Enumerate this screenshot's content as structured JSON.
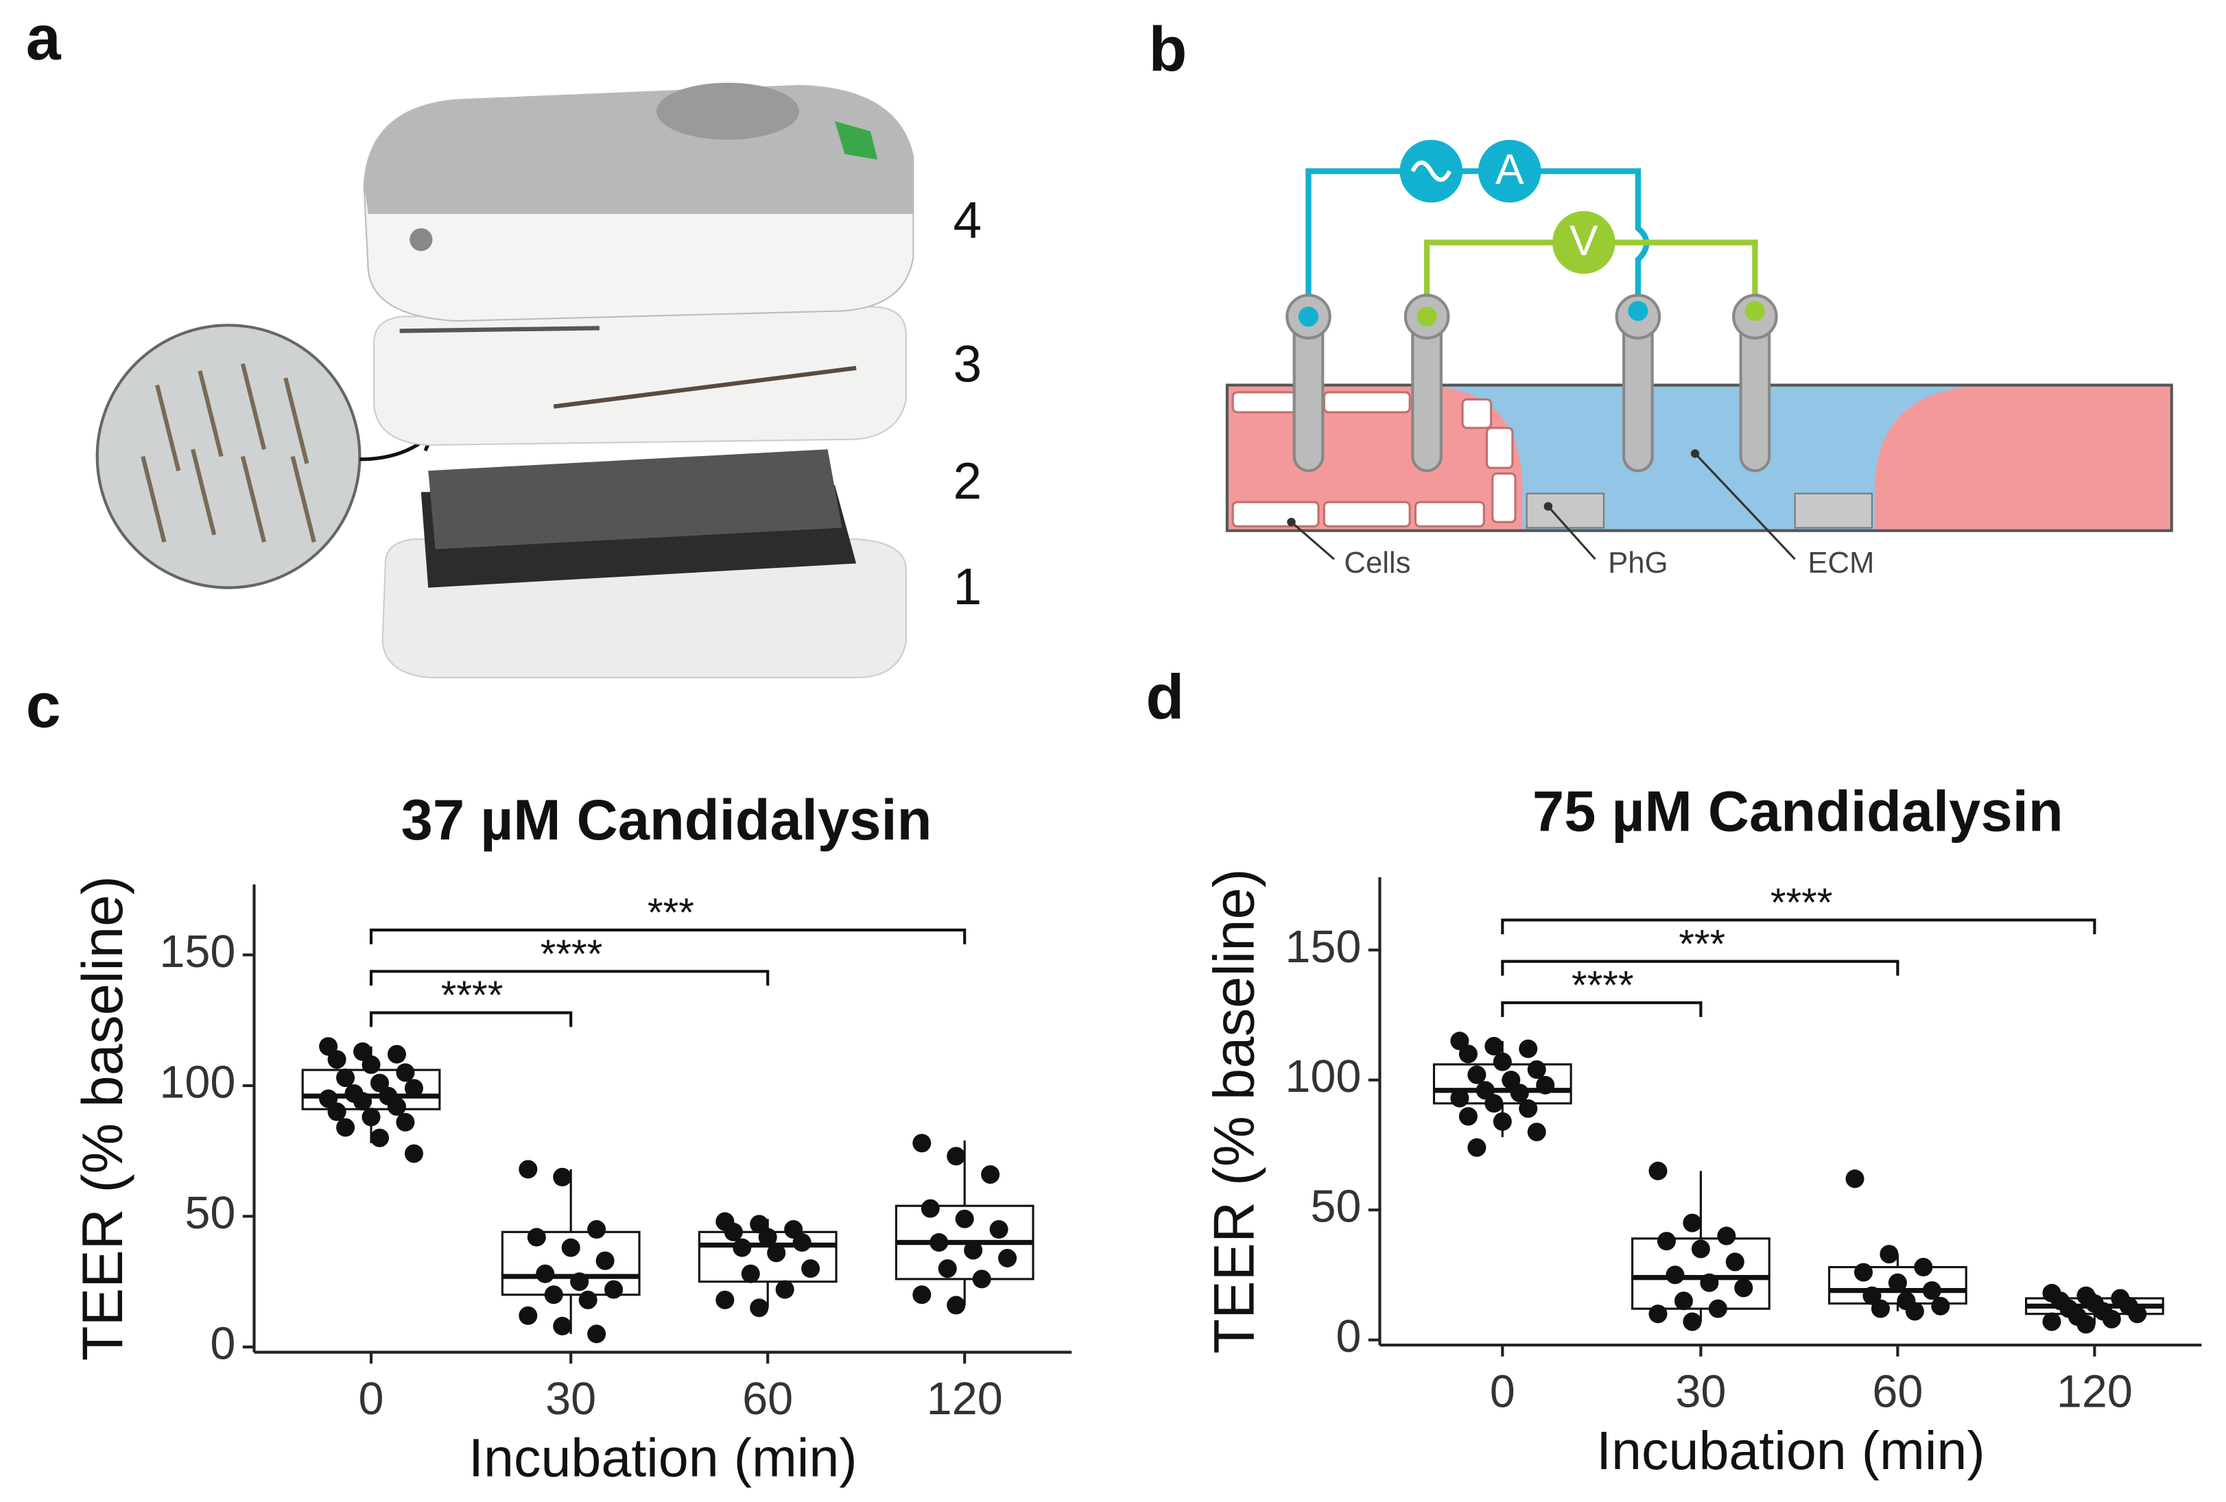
{
  "panel_labels": [
    "a",
    "b",
    "c",
    "d"
  ],
  "device_layers": [
    "4",
    "3",
    "2",
    "1"
  ],
  "circuit": {
    "ammeter": "A",
    "voltmeter": "V"
  },
  "region_labels": [
    "Cells",
    "PhG",
    "ECM"
  ],
  "chart_data": [
    {
      "type": "box",
      "title": "37 µM Candidalysin",
      "x_label": "Incubation (min)",
      "y_label": "TEER (% baseline)",
      "categories": [
        "0",
        "30",
        "60",
        "120"
      ],
      "boxes": [
        {
          "min": 78,
          "q1": 91,
          "median": 96,
          "q3": 106,
          "max": 115,
          "points": [
            115,
            113,
            112,
            110,
            108,
            105,
            103,
            101,
            99,
            97,
            96,
            95,
            94,
            92,
            90,
            88,
            86,
            84,
            80,
            74
          ]
        },
        {
          "min": 5,
          "q1": 20,
          "median": 27,
          "q3": 44,
          "max": 68,
          "points": [
            68,
            65,
            45,
            42,
            38,
            33,
            28,
            25,
            22,
            20,
            18,
            12,
            8,
            5
          ]
        },
        {
          "min": 15,
          "q1": 25,
          "median": 39,
          "q3": 44,
          "max": 49,
          "points": [
            48,
            47,
            45,
            44,
            42,
            40,
            38,
            36,
            30,
            28,
            22,
            18,
            15
          ]
        },
        {
          "min": 16,
          "q1": 26,
          "median": 40,
          "q3": 54,
          "max": 79,
          "points": [
            78,
            73,
            66,
            53,
            49,
            45,
            40,
            37,
            34,
            30,
            26,
            20,
            16
          ]
        }
      ],
      "ylim": [
        -2,
        177
      ],
      "yticks": [
        0,
        50,
        100,
        150
      ],
      "comparisons": [
        {
          "groups": [
            0,
            1
          ],
          "label": "****"
        },
        {
          "groups": [
            0,
            2
          ],
          "label": "****"
        },
        {
          "groups": [
            0,
            3
          ],
          "label": "***"
        }
      ]
    },
    {
      "type": "box",
      "title": "75 µM Candidalysin",
      "x_label": "Incubation (min)",
      "y_label": "TEER (% baseline)",
      "categories": [
        "0",
        "30",
        "60",
        "120"
      ],
      "boxes": [
        {
          "min": 78,
          "q1": 91,
          "median": 96,
          "q3": 106,
          "max": 115,
          "points": [
            115,
            113,
            112,
            110,
            107,
            104,
            102,
            100,
            98,
            96,
            95,
            93,
            91,
            89,
            86,
            84,
            80,
            74
          ]
        },
        {
          "min": 7,
          "q1": 12,
          "median": 24,
          "q3": 39,
          "max": 65,
          "points": [
            65,
            45,
            40,
            38,
            35,
            30,
            25,
            22,
            20,
            15,
            12,
            10,
            7
          ]
        },
        {
          "min": 11,
          "q1": 14,
          "median": 19,
          "q3": 28,
          "max": 33,
          "points": [
            62,
            33,
            28,
            26,
            22,
            19,
            17,
            15,
            13,
            12,
            11
          ]
        },
        {
          "min": 6,
          "q1": 10,
          "median": 13,
          "q3": 16,
          "max": 18,
          "points": [
            18,
            17,
            16,
            15,
            14,
            13,
            12,
            11,
            10,
            9,
            8,
            7,
            6
          ]
        }
      ],
      "ylim": [
        -2,
        178
      ],
      "yticks": [
        0,
        50,
        100,
        150
      ],
      "comparisons": [
        {
          "groups": [
            0,
            1
          ],
          "label": "****"
        },
        {
          "groups": [
            0,
            2
          ],
          "label": "***"
        },
        {
          "groups": [
            0,
            3
          ],
          "label": "****"
        }
      ]
    }
  ]
}
